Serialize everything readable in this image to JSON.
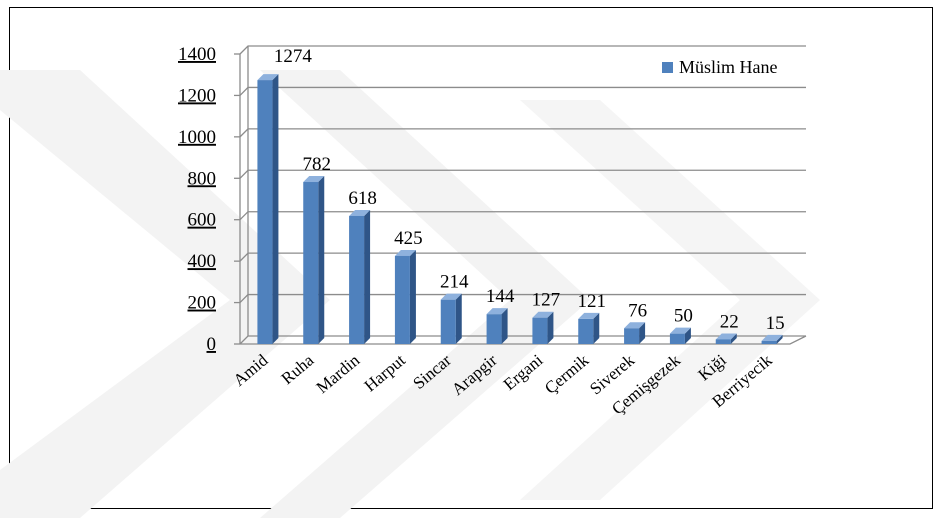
{
  "chart_data": {
    "type": "bar",
    "categories": [
      "Amid",
      "Ruha",
      "Mardin",
      "Harput",
      "Sincar",
      "Arapgir",
      "Ergani",
      "Çermik",
      "Siverek",
      "Çemişgezek",
      "Kiği",
      "Berriyecik"
    ],
    "series": [
      {
        "name": "Müslim Hane",
        "values": [
          1274,
          782,
          618,
          425,
          214,
          144,
          127,
          121,
          76,
          50,
          22,
          15
        ],
        "color": "#4a7ebb"
      }
    ],
    "yticks": [
      0,
      200,
      400,
      600,
      800,
      1000,
      1200,
      1400
    ],
    "ylim": [
      0,
      1400
    ],
    "grid": true,
    "legend_position": "top-right",
    "style": "3d-bar",
    "colors": {
      "bar_front": "#4f81bd",
      "bar_side": "#2f5587",
      "bar_top": "#8eb1dd",
      "grid": "#8c8c8c",
      "watermark": "#f2f2f2"
    }
  }
}
